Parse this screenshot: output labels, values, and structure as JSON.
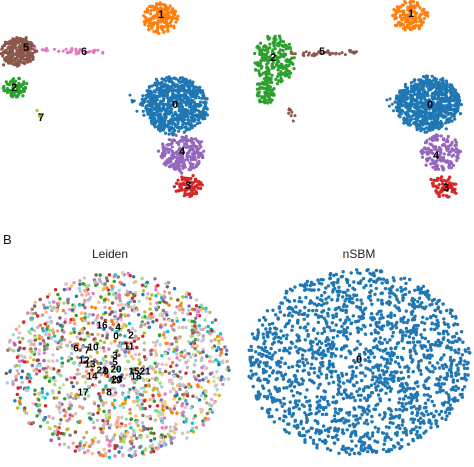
{
  "panel_letter": "B",
  "titles": {
    "left_bottom": "Leiden",
    "right_bottom": "nSBM"
  },
  "colors": {
    "c0": "#1f77b4",
    "c1": "#ff7f0e",
    "c2": "#2ca02c",
    "c3": "#d62728",
    "c4": "#9467bd",
    "c5": "#8c564b",
    "c6": "#e377c2",
    "c7": "#bcbd22"
  },
  "chart_data": [
    {
      "type": "scatter",
      "panel": "top-left",
      "title": "",
      "clusters": [
        {
          "label": "0",
          "color": "#1f77b4",
          "n": 700
        },
        {
          "label": "1",
          "color": "#ff7f0e",
          "n": 160
        },
        {
          "label": "2",
          "color": "#2ca02c",
          "n": 70
        },
        {
          "label": "3",
          "color": "#d62728",
          "n": 90
        },
        {
          "label": "4",
          "color": "#9467bd",
          "n": 220
        },
        {
          "label": "5",
          "color": "#8c564b",
          "n": 260
        },
        {
          "label": "6",
          "color": "#e377c2",
          "n": 40
        },
        {
          "label": "7",
          "color": "#bcbd22",
          "n": 4
        }
      ]
    },
    {
      "type": "scatter",
      "panel": "top-right",
      "title": "",
      "clusters": [
        {
          "label": "0",
          "color": "#1f77b4",
          "n": 750
        },
        {
          "label": "1",
          "color": "#ff7f0e",
          "n": 150
        },
        {
          "label": "2",
          "color": "#2ca02c",
          "n": 300
        },
        {
          "label": "3",
          "color": "#d62728",
          "n": 70
        },
        {
          "label": "4",
          "color": "#9467bd",
          "n": 150
        },
        {
          "label": "5",
          "color": "#8c564b",
          "n": 40
        }
      ]
    },
    {
      "type": "scatter",
      "panel": "bottom-left",
      "title": "Leiden",
      "cluster_labels": [
        "0",
        "2",
        "3",
        "4",
        "5",
        "6",
        "7",
        "8",
        "9",
        "10",
        "11",
        "12",
        "13",
        "14",
        "15",
        "16",
        "17",
        "18",
        "19",
        "20",
        "21",
        "22",
        "23"
      ],
      "n_points": 1500
    },
    {
      "type": "scatter",
      "panel": "bottom-right",
      "title": "nSBM",
      "clusters": [
        {
          "label": "0",
          "color": "#1f77b4",
          "n": 1700
        }
      ]
    }
  ]
}
